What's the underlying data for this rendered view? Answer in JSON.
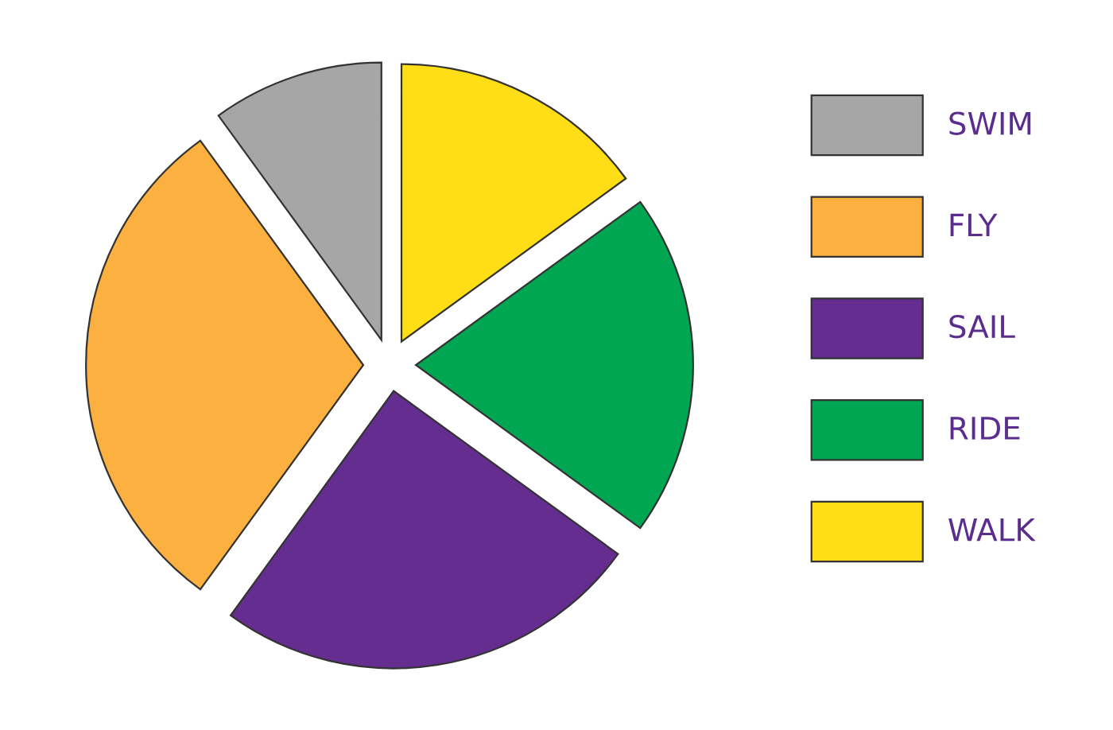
{
  "chart_data": {
    "type": "pie",
    "categories": [
      "SWIM",
      "FLY",
      "SAIL",
      "RIDE",
      "WALK"
    ],
    "values": [
      10,
      30,
      25,
      20,
      15
    ],
    "colors": [
      "#a6a6a6",
      "#fbb040",
      "#662d91",
      "#00a651",
      "#ffde17"
    ],
    "legend": "right"
  }
}
